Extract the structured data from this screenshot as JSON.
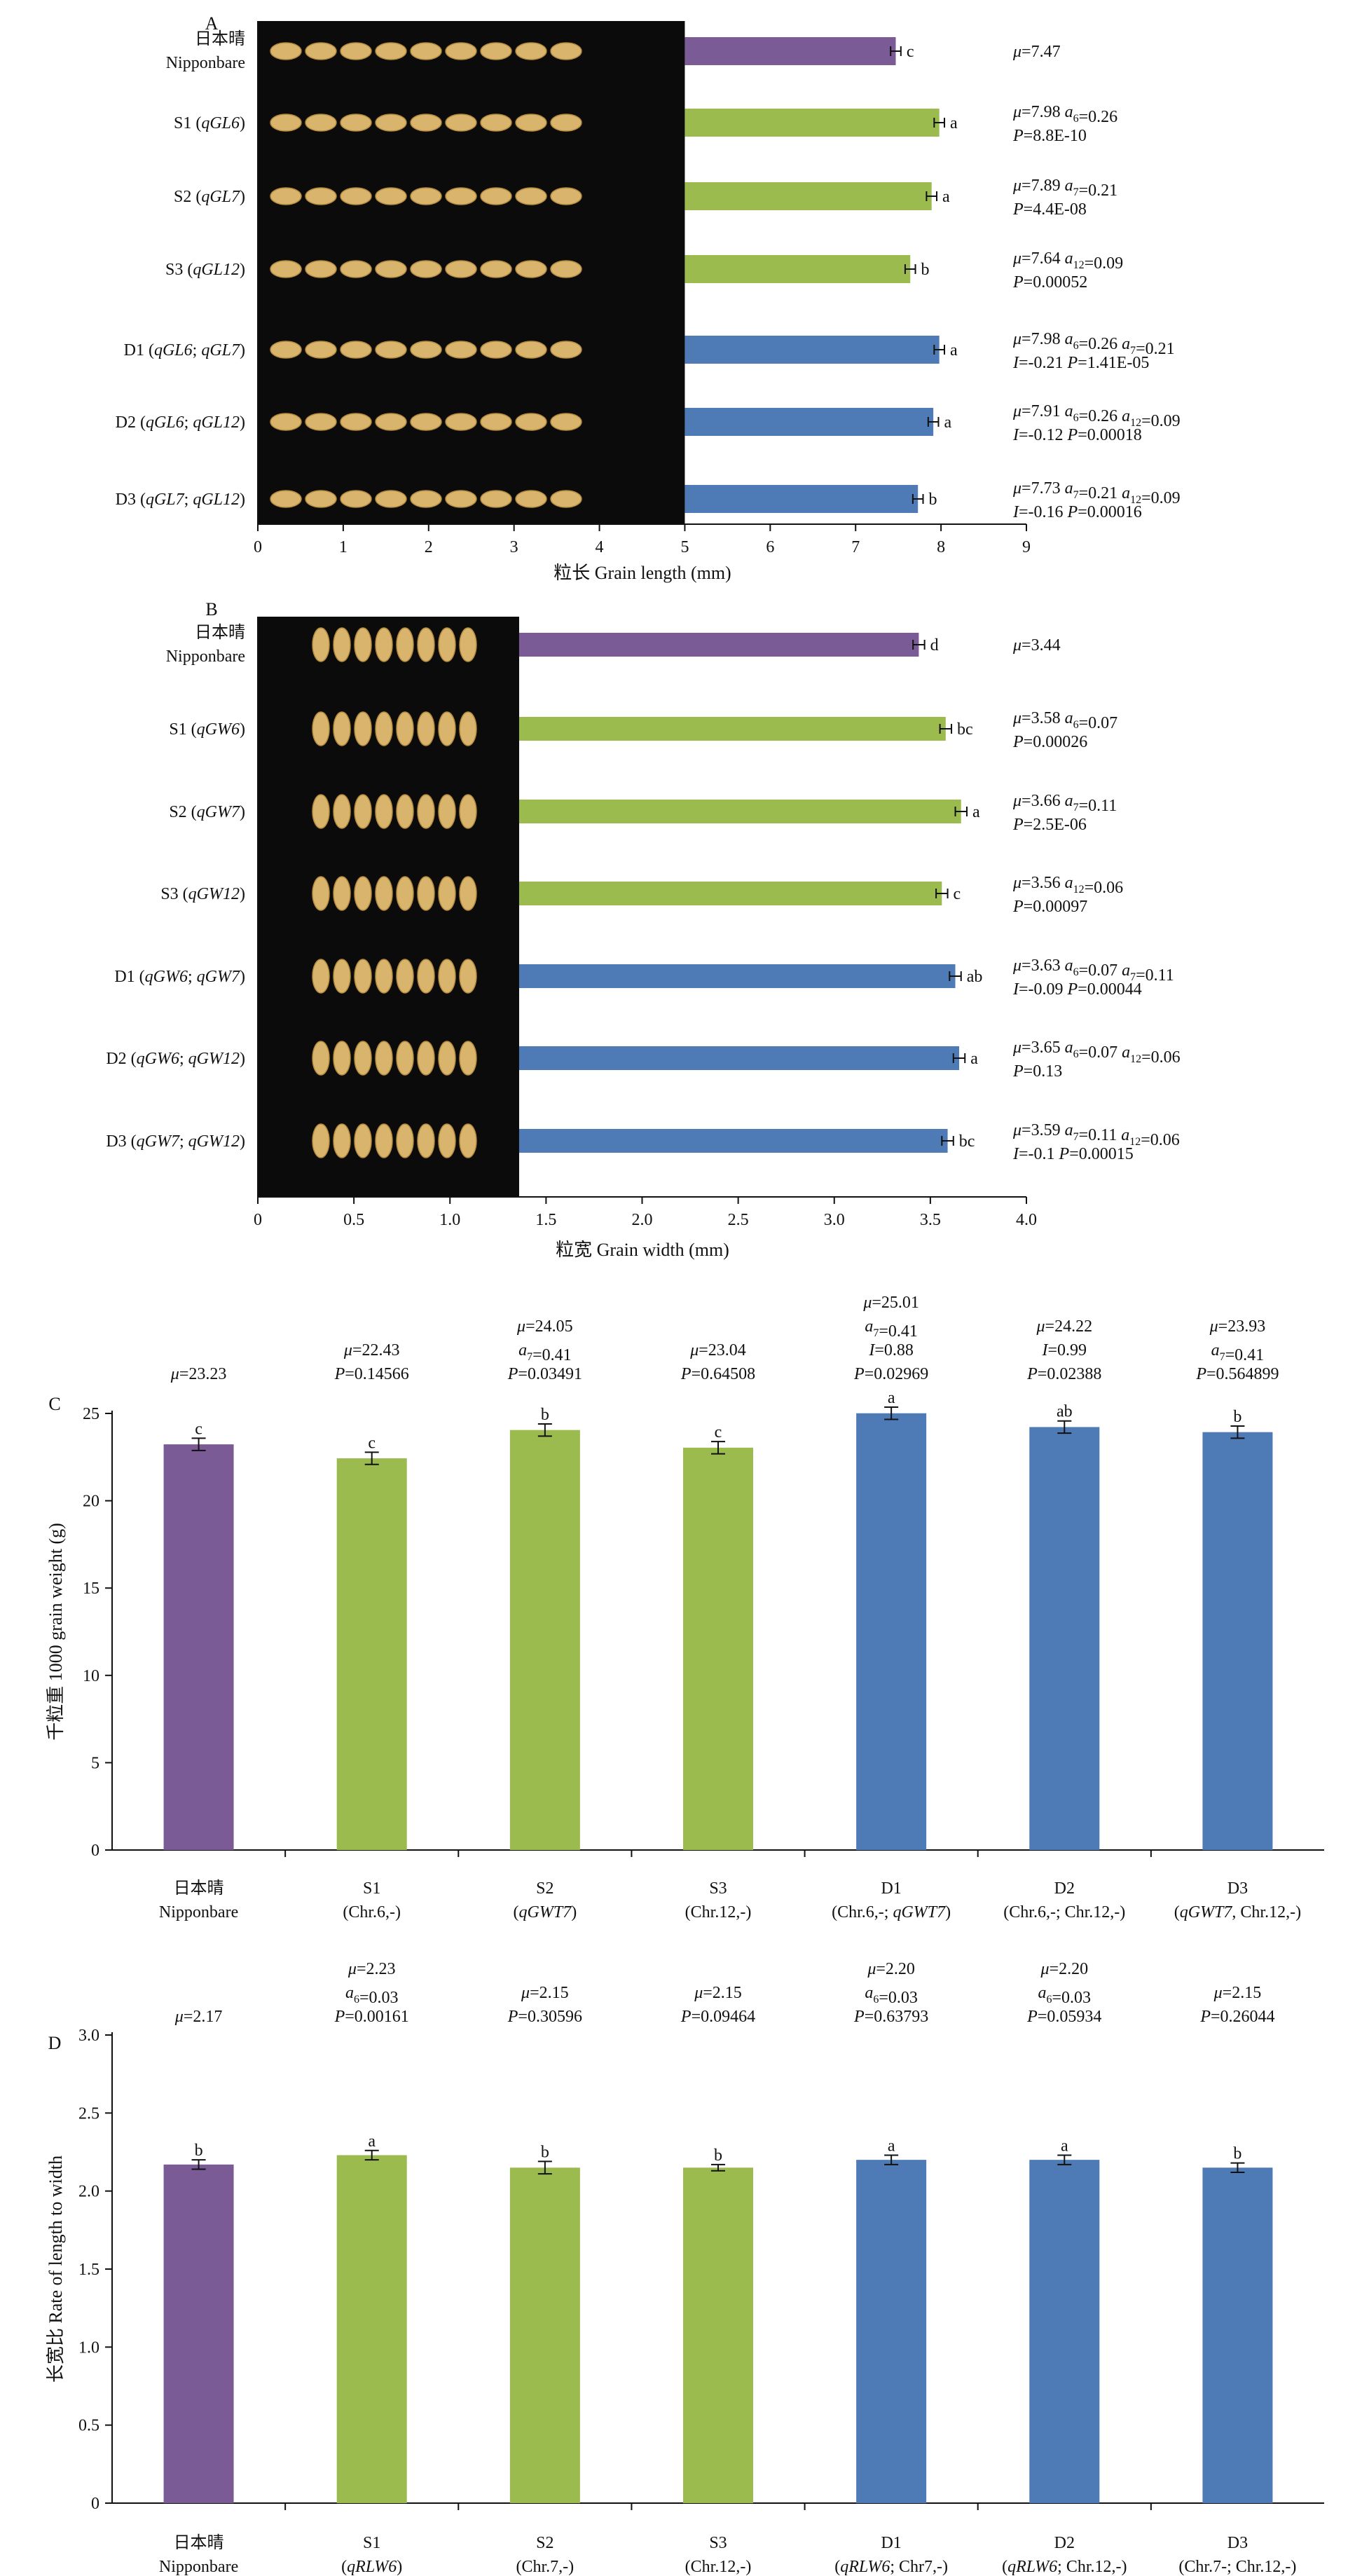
{
  "figure": {
    "colors": {
      "nipponbare": "#7b5b96",
      "single": "#9bbb4f",
      "double": "#4e7ab6",
      "photo_bg": "#0b0b0b",
      "grain": "#d9b46c"
    },
    "panels": [
      "A",
      "B",
      "C",
      "D"
    ]
  },
  "chart_data": [
    {
      "panel": "A",
      "type": "bar",
      "orientation": "horizontal",
      "xlabel": "粒长 Grain length (mm)",
      "xlim": [
        0,
        9
      ],
      "xticks": [
        "0",
        "1",
        "2",
        "3",
        "4",
        "5",
        "6",
        "7",
        "8",
        "9"
      ],
      "photo_xlim": [
        0,
        5
      ],
      "categories": [
        {
          "zh": "日本晴",
          "en": "Nipponbare",
          "label": ""
        },
        {
          "label": "S1 (qGL6)"
        },
        {
          "label": "S2 (qGL7)"
        },
        {
          "label": "S3 (qGL12)"
        },
        {
          "label": "D1 (qGL6; qGL7)"
        },
        {
          "label": "D2 (qGL6; qGL12)"
        },
        {
          "label": "D3 (qGL7; qGL12)"
        }
      ],
      "values": [
        7.47,
        7.98,
        7.89,
        7.64,
        7.98,
        7.91,
        7.73
      ],
      "errors": [
        0.06,
        0.06,
        0.06,
        0.06,
        0.06,
        0.06,
        0.06
      ],
      "groups": [
        "nipponbare",
        "single",
        "single",
        "single",
        "double",
        "double",
        "double"
      ],
      "letters": [
        "c",
        "a",
        "a",
        "b",
        "a",
        "a",
        "b"
      ],
      "stats": [
        [
          "μ=7.47"
        ],
        [
          "μ=7.98  a6=0.26",
          "P=8.8E-10"
        ],
        [
          "μ=7.89  a7=0.21",
          "P=4.4E-08"
        ],
        [
          "μ=7.64  a12=0.09",
          "P=0.00052"
        ],
        [
          "μ=7.98  a6=0.26  a7=0.21",
          "I=-0.21  P=1.41E-05"
        ],
        [
          "μ=7.91  a6=0.26  a12=0.09",
          "I=-0.12  P=0.00018"
        ],
        [
          "μ=7.73  a7=0.21  a12=0.09",
          "I=-0.16  P=0.00016"
        ]
      ]
    },
    {
      "panel": "B",
      "type": "bar",
      "orientation": "horizontal",
      "xlabel": "粒宽 Grain width (mm)",
      "xlim": [
        0,
        4.0
      ],
      "xticks": [
        "0",
        "0.5",
        "1.0",
        "1.5",
        "2.0",
        "2.5",
        "3.0",
        "3.5",
        "4.0"
      ],
      "photo_xlim": [
        0,
        1.36
      ],
      "categories": [
        {
          "zh": "日本晴",
          "en": "Nipponbare",
          "label": ""
        },
        {
          "label": "S1 (qGW6)"
        },
        {
          "label": "S2 (qGW7)"
        },
        {
          "label": "S3 (qGW12)"
        },
        {
          "label": "D1 (qGW6; qGW7)"
        },
        {
          "label": "D2 (qGW6; qGW12)"
        },
        {
          "label": "D3 (qGW7; qGW12)"
        }
      ],
      "values": [
        3.44,
        3.58,
        3.66,
        3.56,
        3.63,
        3.65,
        3.59
      ],
      "errors": [
        0.03,
        0.03,
        0.03,
        0.03,
        0.03,
        0.03,
        0.03
      ],
      "groups": [
        "nipponbare",
        "single",
        "single",
        "single",
        "double",
        "double",
        "double"
      ],
      "letters": [
        "d",
        "bc",
        "a",
        "c",
        "ab",
        "a",
        "bc"
      ],
      "stats": [
        [
          "μ=3.44"
        ],
        [
          "μ=3.58  a6=0.07",
          "P=0.00026"
        ],
        [
          "μ=3.66  a7=0.11",
          "P=2.5E-06"
        ],
        [
          "μ=3.56  a12=0.06",
          "P=0.00097"
        ],
        [
          "μ=3.63  a6=0.07  a7=0.11",
          "I=-0.09  P=0.00044"
        ],
        [
          "μ=3.65  a6=0.07  a12=0.06",
          "P=0.13"
        ],
        [
          "μ=3.59  a7=0.11  a12=0.06",
          "I=-0.1  P=0.00015"
        ]
      ]
    },
    {
      "panel": "C",
      "type": "bar",
      "orientation": "vertical",
      "ylabel": "千粒重 1000 grain weight (g)",
      "ylim": [
        0,
        25
      ],
      "yticks": [
        "0",
        "5",
        "10",
        "15",
        "20",
        "25"
      ],
      "categories": [
        [
          "日本晴",
          "Nipponbare"
        ],
        [
          "S1",
          "(Chr.6,-)"
        ],
        [
          "S2",
          "(qGWT7)"
        ],
        [
          "S3",
          "(Chr.12,-)"
        ],
        [
          "D1",
          "(Chr.6,-; qGWT7)"
        ],
        [
          "D2",
          "(Chr.6,-; Chr.12,-)"
        ],
        [
          "D3",
          "(qGWT7, Chr.12,-)"
        ]
      ],
      "values": [
        23.23,
        22.43,
        24.05,
        23.04,
        25.01,
        24.22,
        23.93
      ],
      "errors": [
        0.35,
        0.35,
        0.35,
        0.35,
        0.35,
        0.35,
        0.35
      ],
      "groups": [
        "nipponbare",
        "single",
        "single",
        "single",
        "double",
        "double",
        "double"
      ],
      "letters": [
        "c",
        "c",
        "b",
        "c",
        "a",
        "ab",
        "b"
      ],
      "stats": [
        [
          "μ=23.23"
        ],
        [
          "μ=22.43",
          "P=0.14566"
        ],
        [
          "μ=24.05",
          "a7=0.41",
          "P=0.03491"
        ],
        [
          "μ=23.04",
          "P=0.64508"
        ],
        [
          "μ=25.01",
          "a7=0.41",
          "I=0.88",
          "P=0.02969"
        ],
        [
          "μ=24.22",
          "I=0.99",
          "P=0.02388"
        ],
        [
          "μ=23.93",
          "a7=0.41",
          "P=0.564899"
        ]
      ]
    },
    {
      "panel": "D",
      "type": "bar",
      "orientation": "vertical",
      "ylabel": "长宽比 Rate of length to width",
      "ylim": [
        0,
        3.0
      ],
      "yticks": [
        "0",
        "0.5",
        "1.0",
        "1.5",
        "2.0",
        "2.5",
        "3.0"
      ],
      "categories": [
        [
          "日本晴",
          "Nipponbare"
        ],
        [
          "S1",
          "(qRLW6)"
        ],
        [
          "S2",
          "(Chr.7,-)"
        ],
        [
          "S3",
          "(Chr.12,-)"
        ],
        [
          "D1",
          "(qRLW6; Chr7,-)"
        ],
        [
          "D2",
          "(qRLW6; Chr.12,-)"
        ],
        [
          "D3",
          "(Chr.7-; Chr.12,-)"
        ]
      ],
      "values": [
        2.17,
        2.23,
        2.15,
        2.15,
        2.2,
        2.2,
        2.15
      ],
      "errors": [
        0.03,
        0.03,
        0.04,
        0.02,
        0.03,
        0.03,
        0.03
      ],
      "groups": [
        "nipponbare",
        "single",
        "single",
        "single",
        "double",
        "double",
        "double"
      ],
      "letters": [
        "b",
        "a",
        "b",
        "b",
        "a",
        "a",
        "b"
      ],
      "stats": [
        [
          "μ=2.17"
        ],
        [
          "μ=2.23",
          "a6=0.03",
          "P=0.00161"
        ],
        [
          "μ=2.15",
          "P=0.30596"
        ],
        [
          "μ=2.15",
          "P=0.09464"
        ],
        [
          "μ=2.20",
          "a6=0.03",
          "P=0.63793"
        ],
        [
          "μ=2.20",
          "a6=0.03",
          "P=0.05934"
        ],
        [
          "μ=2.15",
          "P=0.26044"
        ]
      ]
    }
  ]
}
